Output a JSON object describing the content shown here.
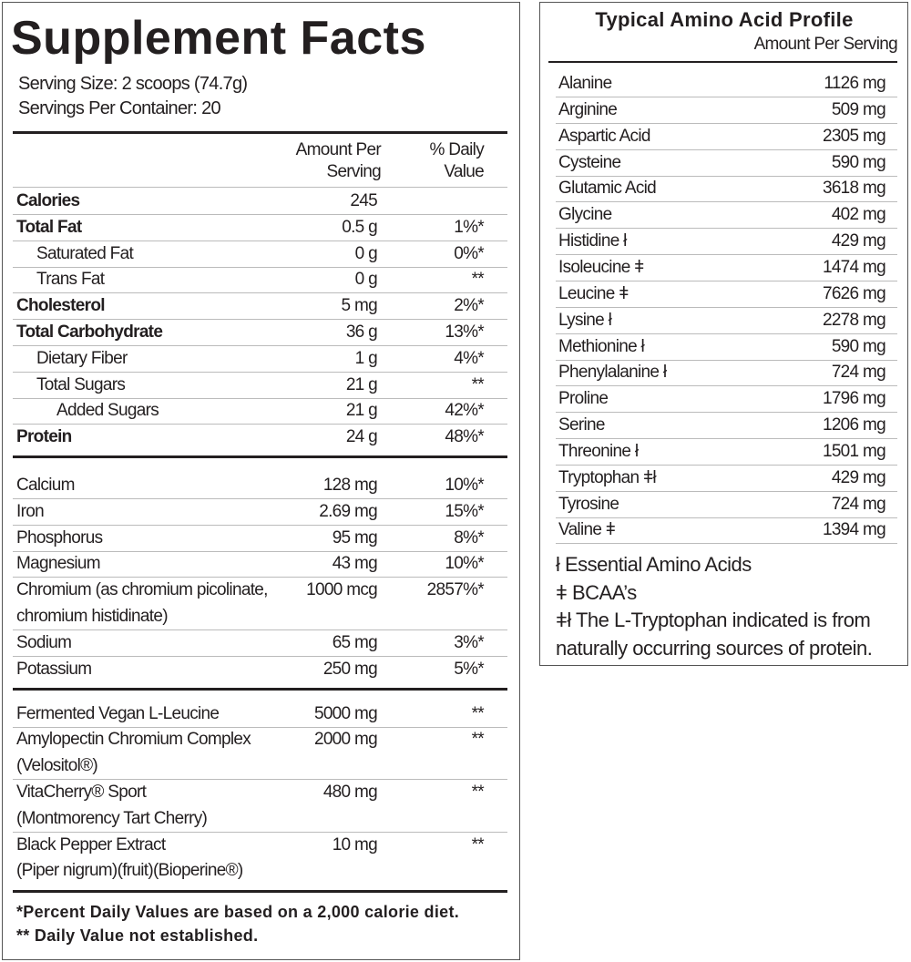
{
  "supplement_facts": {
    "title": "Supplement Facts",
    "serving_size": "Serving Size: 2 scoops (74.7g)",
    "servings_per_container": "Servings Per Container: 20",
    "column_headers": {
      "amount": [
        "Amount Per",
        "Serving"
      ],
      "daily_value": [
        "% Daily",
        "Value"
      ]
    },
    "macros": [
      {
        "name": [
          "Calories"
        ],
        "amount": "245"
      },
      {
        "name": [
          "Total Fat"
        ],
        "amount": "0.5 g",
        "daily_value": "1%*"
      },
      {
        "name": [
          "Saturated Fat"
        ],
        "amount": "0 g",
        "daily_value": "0%*"
      },
      {
        "name": [
          "Trans Fat"
        ],
        "amount": "0 g",
        "daily_value": "**"
      },
      {
        "name": [
          "Cholesterol"
        ],
        "amount": "5 mg",
        "daily_value": "2%*"
      },
      {
        "name": [
          "Total Carbohydrate"
        ],
        "amount": "36 g",
        "daily_value": "13%*"
      },
      {
        "name": [
          "Dietary Fiber"
        ],
        "amount": "1 g",
        "daily_value": "4%*"
      },
      {
        "name": [
          "Total Sugars"
        ],
        "amount": "21 g",
        "daily_value": "**"
      },
      {
        "name": [
          "Added Sugars"
        ],
        "amount": "21 g",
        "daily_value": "42%*"
      },
      {
        "name": [
          "Protein"
        ],
        "amount": "24 g",
        "daily_value": "48%*"
      }
    ],
    "minerals": [
      {
        "name": [
          "Calcium"
        ],
        "amount": "128 mg",
        "daily_value": "10%*"
      },
      {
        "name": [
          "Iron"
        ],
        "amount": "2.69 mg",
        "daily_value": "15%*"
      },
      {
        "name": [
          "Phosphorus"
        ],
        "amount": "95 mg",
        "daily_value": "8%*"
      },
      {
        "name": [
          "Magnesium"
        ],
        "amount": "43 mg",
        "daily_value": "10%*"
      },
      {
        "name": [
          "Chromium (as chromium picolinate,",
          "chromium histidinate)"
        ],
        "amount": "1000 mcg",
        "daily_value": "2857%*"
      },
      {
        "name": [
          "Sodium"
        ],
        "amount": "65 mg",
        "daily_value": "3%*"
      },
      {
        "name": [
          "Potassium"
        ],
        "amount": "250 mg",
        "daily_value": "5%*"
      }
    ],
    "ingredients": [
      {
        "name": [
          "Fermented Vegan L-Leucine"
        ],
        "amount": "5000 mg",
        "daily_value": "**"
      },
      {
        "name": [
          "Amylopectin Chromium Complex",
          "(Velositol®)"
        ],
        "amount": "2000 mg",
        "daily_value": "**"
      },
      {
        "name": [
          "VitaCherry® Sport",
          "(Montmorency Tart Cherry)"
        ],
        "amount": "480 mg",
        "daily_value": "**"
      },
      {
        "name": [
          "Black Pepper Extract",
          "(Piper nigrum)(fruit)(Bioperine®)"
        ],
        "amount": "10 mg",
        "daily_value": "**"
      }
    ],
    "footnotes": [
      "*Percent Daily Values are based on a 2,000 calorie diet.",
      "** Daily Value not established."
    ]
  },
  "amino_acid_profile": {
    "title": "Typical Amino Acid Profile",
    "subtitle": "Amount Per Serving",
    "rows": [
      {
        "name": "Alanine",
        "amount": "1126 mg"
      },
      {
        "name": "Arginine",
        "amount": "509 mg"
      },
      {
        "name": "Aspartic Acid",
        "amount": "2305 mg"
      },
      {
        "name": "Cysteine",
        "amount": "590 mg"
      },
      {
        "name": "Glutamic Acid",
        "amount": "3618 mg"
      },
      {
        "name": "Glycine",
        "amount": "402 mg"
      },
      {
        "name": "Histidine ł",
        "amount": "429 mg"
      },
      {
        "name": "Isoleucine ǂ",
        "amount": "1474 mg"
      },
      {
        "name": "Leucine ǂ",
        "amount": "7626 mg"
      },
      {
        "name": "Lysine ł",
        "amount": "2278 mg"
      },
      {
        "name": "Methionine ł",
        "amount": "590 mg"
      },
      {
        "name": "Phenylalanine ł",
        "amount": "724 mg"
      },
      {
        "name": "Proline",
        "amount": "1796 mg"
      },
      {
        "name": "Serine",
        "amount": "1206 mg"
      },
      {
        "name": "Threonine ł",
        "amount": "1501 mg"
      },
      {
        "name": "Tryptophan ǂł",
        "amount": "429 mg"
      },
      {
        "name": "Tyrosine",
        "amount": "724 mg"
      },
      {
        "name": "Valine ǂ",
        "amount": "1394 mg"
      }
    ],
    "footnotes": [
      "ł Essential Amino Acids",
      "ǂ BCAA’s",
      "ǂł The L-Tryptophan indicated is from",
      "naturally occurring sources of protein."
    ]
  }
}
